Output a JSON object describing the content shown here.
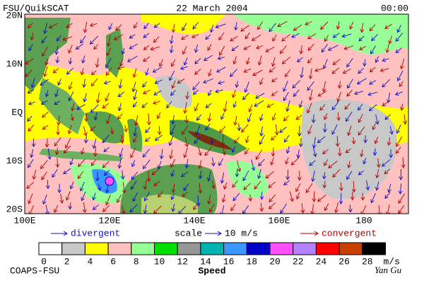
{
  "header": {
    "source": "FSU/QuikSCAT",
    "date": "22 March 2004",
    "time": "00:00"
  },
  "map": {
    "lat_labels": [
      "20N",
      "10N",
      "EQ",
      "10S",
      "20S"
    ],
    "lon_labels": [
      "100E",
      "120E",
      "140E",
      "160E",
      "180"
    ]
  },
  "legend": {
    "divergent": "divergent",
    "scale": "scale",
    "scale_value": "10 m/s",
    "convergent": "convergent"
  },
  "colorbar": {
    "colors": [
      "#ffffff",
      "#c8c8c8",
      "#ffff00",
      "#ffc0c0",
      "#96ff96",
      "#00e000",
      "#969696",
      "#00b4b4",
      "#3c96ff",
      "#0000c8",
      "#ff50ff",
      "#b482ff",
      "#ff0000",
      "#c84000",
      "#000000"
    ],
    "labels": [
      0,
      2,
      4,
      6,
      8,
      10,
      12,
      14,
      16,
      18,
      20,
      22,
      24,
      26,
      28
    ],
    "unit": "m/s",
    "title": "Speed"
  },
  "footer": {
    "left": "COAPS-FSU",
    "right": "Yan Gu"
  }
}
